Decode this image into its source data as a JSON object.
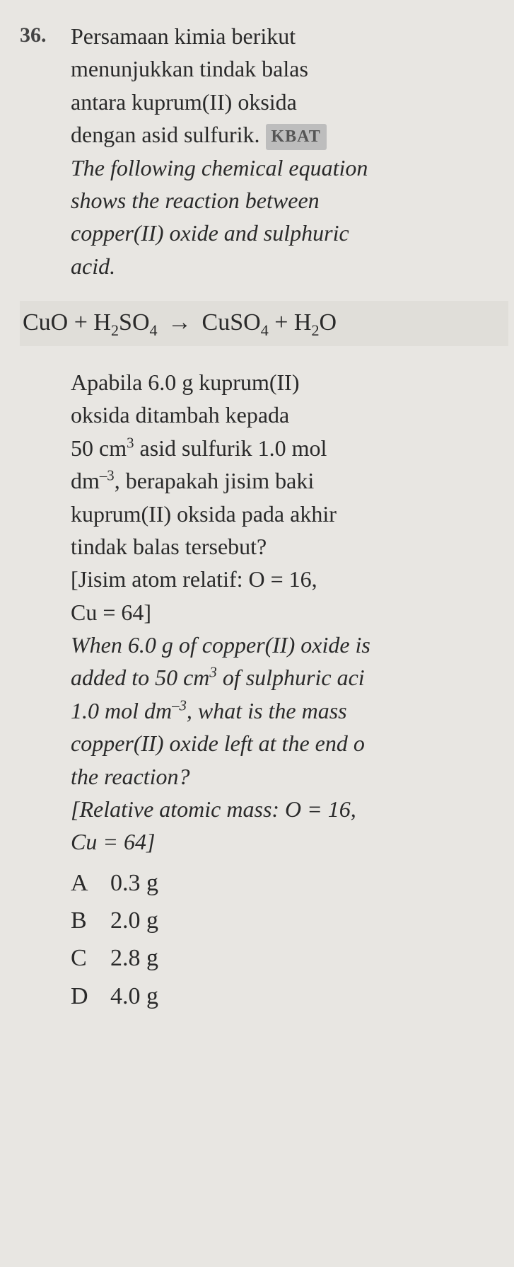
{
  "question_number": "36.",
  "stem_ms_line1": "Persamaan kimia berikut",
  "stem_ms_line2": "menunjukkan tindak balas",
  "stem_ms_line3": "antara kuprum(II) oksida",
  "stem_ms_line4": "dengan asid sulfurik.",
  "kbat_label": "KBAT",
  "stem_en_line1": "The following chemical equation",
  "stem_en_line2": "shows the reaction between",
  "stem_en_line3": "copper(II) oxide and sulphuric",
  "stem_en_line4": "acid.",
  "eq": {
    "r1_base": "CuO",
    "plus": "+",
    "r2_base": "H",
    "r2_sub1": "2",
    "r2_mid": "SO",
    "r2_sub2": "4",
    "arrow": "→",
    "p1_base": "CuSO",
    "p1_sub": "4",
    "p2_base": "H",
    "p2_sub": "2",
    "p2_tail": "O"
  },
  "q_ms_l1": "Apabila 6.0 g kuprum(II)",
  "q_ms_l2": "oksida ditambah kepada",
  "q_ms_l3a": "50 cm",
  "q_ms_l3_sup": "3",
  "q_ms_l3b": " asid sulfurik 1.0 mol",
  "q_ms_l4a": "dm",
  "q_ms_l4_sup": "–3",
  "q_ms_l4b": ", berapakah jisim baki",
  "q_ms_l5": "kuprum(II) oksida pada akhir",
  "q_ms_l6": "tindak balas tersebut?",
  "q_ms_l7": "[Jisim atom relatif: O = 16,",
  "q_ms_l8": "Cu = 64]",
  "q_en_l1": "When 6.0 g of copper(II) oxide is",
  "q_en_l2a": "added to 50 cm",
  "q_en_l2_sup": "3",
  "q_en_l2b": " of sulphuric aci",
  "q_en_l3a": "1.0 mol dm",
  "q_en_l3_sup": "–3",
  "q_en_l3b": ", what is the mass ",
  "q_en_l4": "copper(II) oxide left at the end o",
  "q_en_l5": "the reaction?",
  "q_en_l6": "[Relative atomic mass: O = 16,",
  "q_en_l7": "Cu = 64]",
  "choices": {
    "A": {
      "letter": "A",
      "val": "0.3 g"
    },
    "B": {
      "letter": "B",
      "val": "2.0 g"
    },
    "C": {
      "letter": "C",
      "val": "2.8 g"
    },
    "D": {
      "letter": "D",
      "val": "4.0 g"
    }
  }
}
